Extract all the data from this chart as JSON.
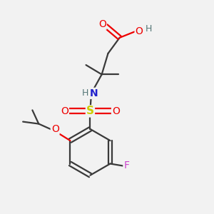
{
  "bg_color": "#f2f2f2",
  "atom_colors": {
    "C": "#3a3a3a",
    "O": "#ee0000",
    "N": "#2222cc",
    "S": "#cccc00",
    "F": "#cc44cc",
    "H": "#557777"
  },
  "bond_color": "#3a3a3a",
  "bond_width": 1.6,
  "figsize": [
    3.0,
    3.0
  ],
  "dpi": 100
}
